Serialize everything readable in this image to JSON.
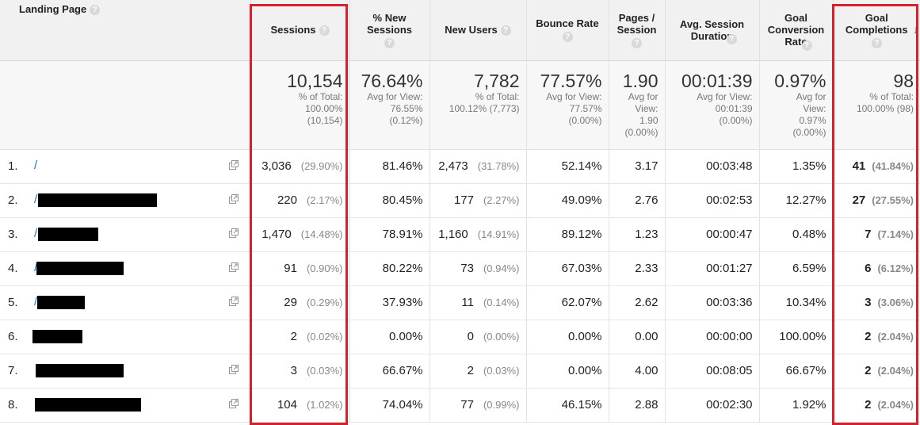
{
  "headers": {
    "landing_page": "Landing Page",
    "sessions": "Sessions",
    "new_sessions": "% New Sessions",
    "new_users": "New Users",
    "bounce_rate": "Bounce Rate",
    "pages_session": "Pages / Session",
    "avg_duration": "Avg. Session Duration",
    "goal_conv_rate": "Goal Conversion Rate",
    "goal_completions": "Goal Completions",
    "help_glyph": "?",
    "sort_glyph": "↓"
  },
  "totals": {
    "sessions": {
      "big": "10,154",
      "sub1": "% of Total:",
      "sub2": "100.00%",
      "sub3": "(10,154)"
    },
    "new_sessions": {
      "big": "76.64%",
      "sub1": "Avg for View:",
      "sub2": "76.55%",
      "sub3": "(0.12%)"
    },
    "new_users": {
      "big": "7,782",
      "sub1": "% of Total:",
      "sub2": "100.12% (7,773)"
    },
    "bounce_rate": {
      "big": "77.57%",
      "sub1": "Avg for View:",
      "sub2": "77.57%",
      "sub3": "(0.00%)"
    },
    "pages_session": {
      "big": "1.90",
      "sub1": "Avg for",
      "sub2": "View:",
      "sub3": "1.90",
      "sub4": "(0.00%)"
    },
    "avg_duration": {
      "big": "00:01:39",
      "sub1": "Avg for View:",
      "sub2": "00:01:39",
      "sub3": "(0.00%)"
    },
    "goal_conv_rate": {
      "big": "0.97%",
      "sub1": "Avg for",
      "sub2": "View:",
      "sub3": "0.97%",
      "sub4": "(0.00%)"
    },
    "goal_completions": {
      "big": "98",
      "sub1": "% of Total:",
      "sub2": "100.00% (98)"
    }
  },
  "rows": [
    {
      "num": "1.",
      "page": "/",
      "sessions": "3,036",
      "sessions_pct": "(29.90%)",
      "new_sessions": "81.46%",
      "new_users": "2,473",
      "new_users_pct": "(31.78%)",
      "bounce": "52.14%",
      "pages": "3.17",
      "duration": "00:03:48",
      "conv": "1.35%",
      "goals": "41",
      "goals_pct": "(41.84%)"
    },
    {
      "num": "2.",
      "page": "/",
      "sessions": "220",
      "sessions_pct": "(2.17%)",
      "new_sessions": "80.45%",
      "new_users": "177",
      "new_users_pct": "(2.27%)",
      "bounce": "49.09%",
      "pages": "2.76",
      "duration": "00:02:53",
      "conv": "12.27%",
      "goals": "27",
      "goals_pct": "(27.55%)"
    },
    {
      "num": "3.",
      "page": "/",
      "sessions": "1,470",
      "sessions_pct": "(14.48%)",
      "new_sessions": "78.91%",
      "new_users": "1,160",
      "new_users_pct": "(14.91%)",
      "bounce": "89.12%",
      "pages": "1.23",
      "duration": "00:00:47",
      "conv": "0.48%",
      "goals": "7",
      "goals_pct": "(7.14%)"
    },
    {
      "num": "4.",
      "page": "/",
      "sessions": "91",
      "sessions_pct": "(0.90%)",
      "new_sessions": "80.22%",
      "new_users": "73",
      "new_users_pct": "(0.94%)",
      "bounce": "67.03%",
      "pages": "2.33",
      "duration": "00:01:27",
      "conv": "6.59%",
      "goals": "6",
      "goals_pct": "(6.12%)"
    },
    {
      "num": "5.",
      "page": "/",
      "sessions": "29",
      "sessions_pct": "(0.29%)",
      "new_sessions": "37.93%",
      "new_users": "11",
      "new_users_pct": "(0.14%)",
      "bounce": "62.07%",
      "pages": "2.62",
      "duration": "00:03:36",
      "conv": "10.34%",
      "goals": "3",
      "goals_pct": "(3.06%)"
    },
    {
      "num": "6.",
      "page": "",
      "sessions": "2",
      "sessions_pct": "(0.02%)",
      "new_sessions": "0.00%",
      "new_users": "0",
      "new_users_pct": "(0.00%)",
      "bounce": "0.00%",
      "pages": "0.00",
      "duration": "00:00:00",
      "conv": "100.00%",
      "goals": "2",
      "goals_pct": "(2.04%)"
    },
    {
      "num": "7.",
      "page": "",
      "sessions": "3",
      "sessions_pct": "(0.03%)",
      "new_sessions": "66.67%",
      "new_users": "2",
      "new_users_pct": "(0.03%)",
      "bounce": "0.00%",
      "pages": "4.00",
      "duration": "00:08:05",
      "conv": "66.67%",
      "goals": "2",
      "goals_pct": "(2.04%)"
    },
    {
      "num": "8.",
      "page": "",
      "sessions": "104",
      "sessions_pct": "(1.02%)",
      "new_sessions": "74.04%",
      "new_users": "77",
      "new_users_pct": "(0.99%)",
      "bounce": "46.15%",
      "pages": "2.88",
      "duration": "00:02:30",
      "conv": "1.92%",
      "goals": "2",
      "goals_pct": "(2.04%)"
    }
  ],
  "colors": {
    "highlight": "#d6202b",
    "link": "#2a6fbf"
  }
}
